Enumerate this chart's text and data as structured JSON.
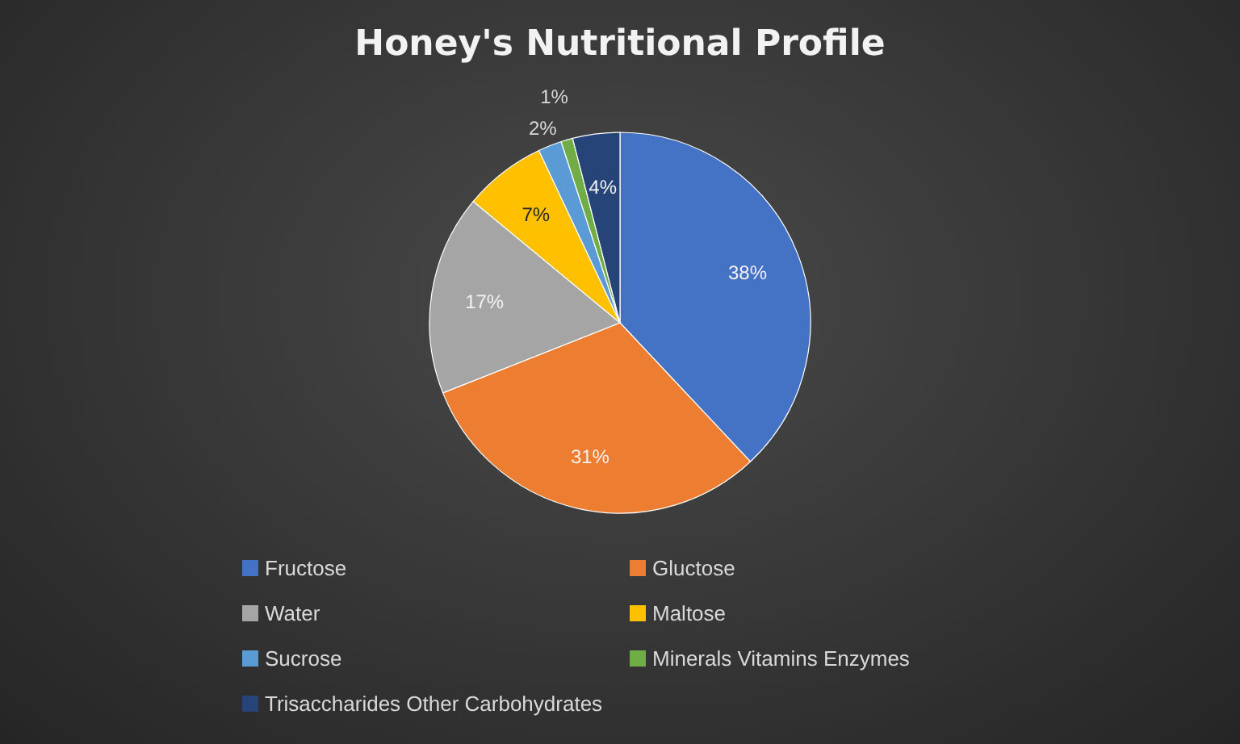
{
  "chart_data": {
    "type": "pie",
    "title": "Honey's Nutritional Profile",
    "categories": [
      "Fructose",
      "Gluctose",
      "Water",
      "Maltose",
      "Sucrose",
      "Minerals Vitamins Enzymes",
      "Trisaccharides Other Carbohydrates"
    ],
    "values": [
      38,
      31,
      17,
      7,
      2,
      1,
      4
    ],
    "colors": [
      "#4472c4",
      "#ed7d31",
      "#a5a5a5",
      "#ffc000",
      "#5b9bd5",
      "#70ad47",
      "#264478"
    ],
    "value_labels": [
      "38%",
      "31%",
      "17%",
      "7%",
      "2%",
      "1%",
      "4%"
    ],
    "legend": "bottom"
  }
}
